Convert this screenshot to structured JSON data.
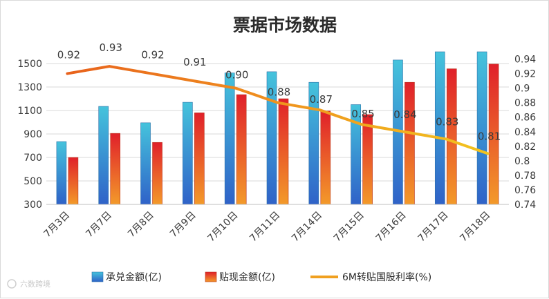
{
  "chart_data": {
    "type": "bar",
    "title": "票据市场数据",
    "categories": [
      "7月3日",
      "7月7日",
      "7月8日",
      "7月9日",
      "7月10日",
      "7月11日",
      "7月14日",
      "7月15日",
      "7月16日",
      "7月17日",
      "7月18日"
    ],
    "series": [
      {
        "name": "承兑金额(亿)",
        "type": "bar",
        "axis": "left",
        "values": [
          835,
          1135,
          995,
          1170,
          1420,
          1430,
          1340,
          1150,
          1530,
          1600,
          1600
        ]
      },
      {
        "name": "贴现金额(亿)",
        "type": "bar",
        "axis": "left",
        "values": [
          700,
          905,
          828,
          1080,
          1235,
          1200,
          1095,
          1065,
          1340,
          1455,
          1495
        ]
      },
      {
        "name": "6M转贴国股利率(%)",
        "type": "line",
        "axis": "right",
        "values": [
          0.92,
          0.93,
          0.92,
          0.91,
          0.9,
          0.88,
          0.87,
          0.85,
          0.84,
          0.83,
          0.81
        ]
      }
    ],
    "line_labels": [
      "0.92",
      "0.93",
      "0.92",
      "0.91",
      "0.90",
      "0.88",
      "0.87",
      "0.85",
      "0.84",
      "0.83",
      "0.81"
    ],
    "left_axis": {
      "ylim": [
        300,
        1600
      ],
      "ticks": [
        "300",
        "500",
        "700",
        "900",
        "1100",
        "1300",
        "1500"
      ]
    },
    "right_axis": {
      "ylim": [
        0.74,
        0.95
      ],
      "ticks": [
        "0.74",
        "0.76",
        "0.78",
        "0.8",
        "0.82",
        "0.84",
        "0.86",
        "0.88",
        "0.9",
        "0.92",
        "0.94"
      ]
    },
    "legend_position": "bottom",
    "colors": {
      "bar1": "#3fa7c9",
      "bar2": "#e8482f",
      "line": "#f0a020",
      "line_early": "#e9681e"
    }
  },
  "watermark": "六数跨境"
}
